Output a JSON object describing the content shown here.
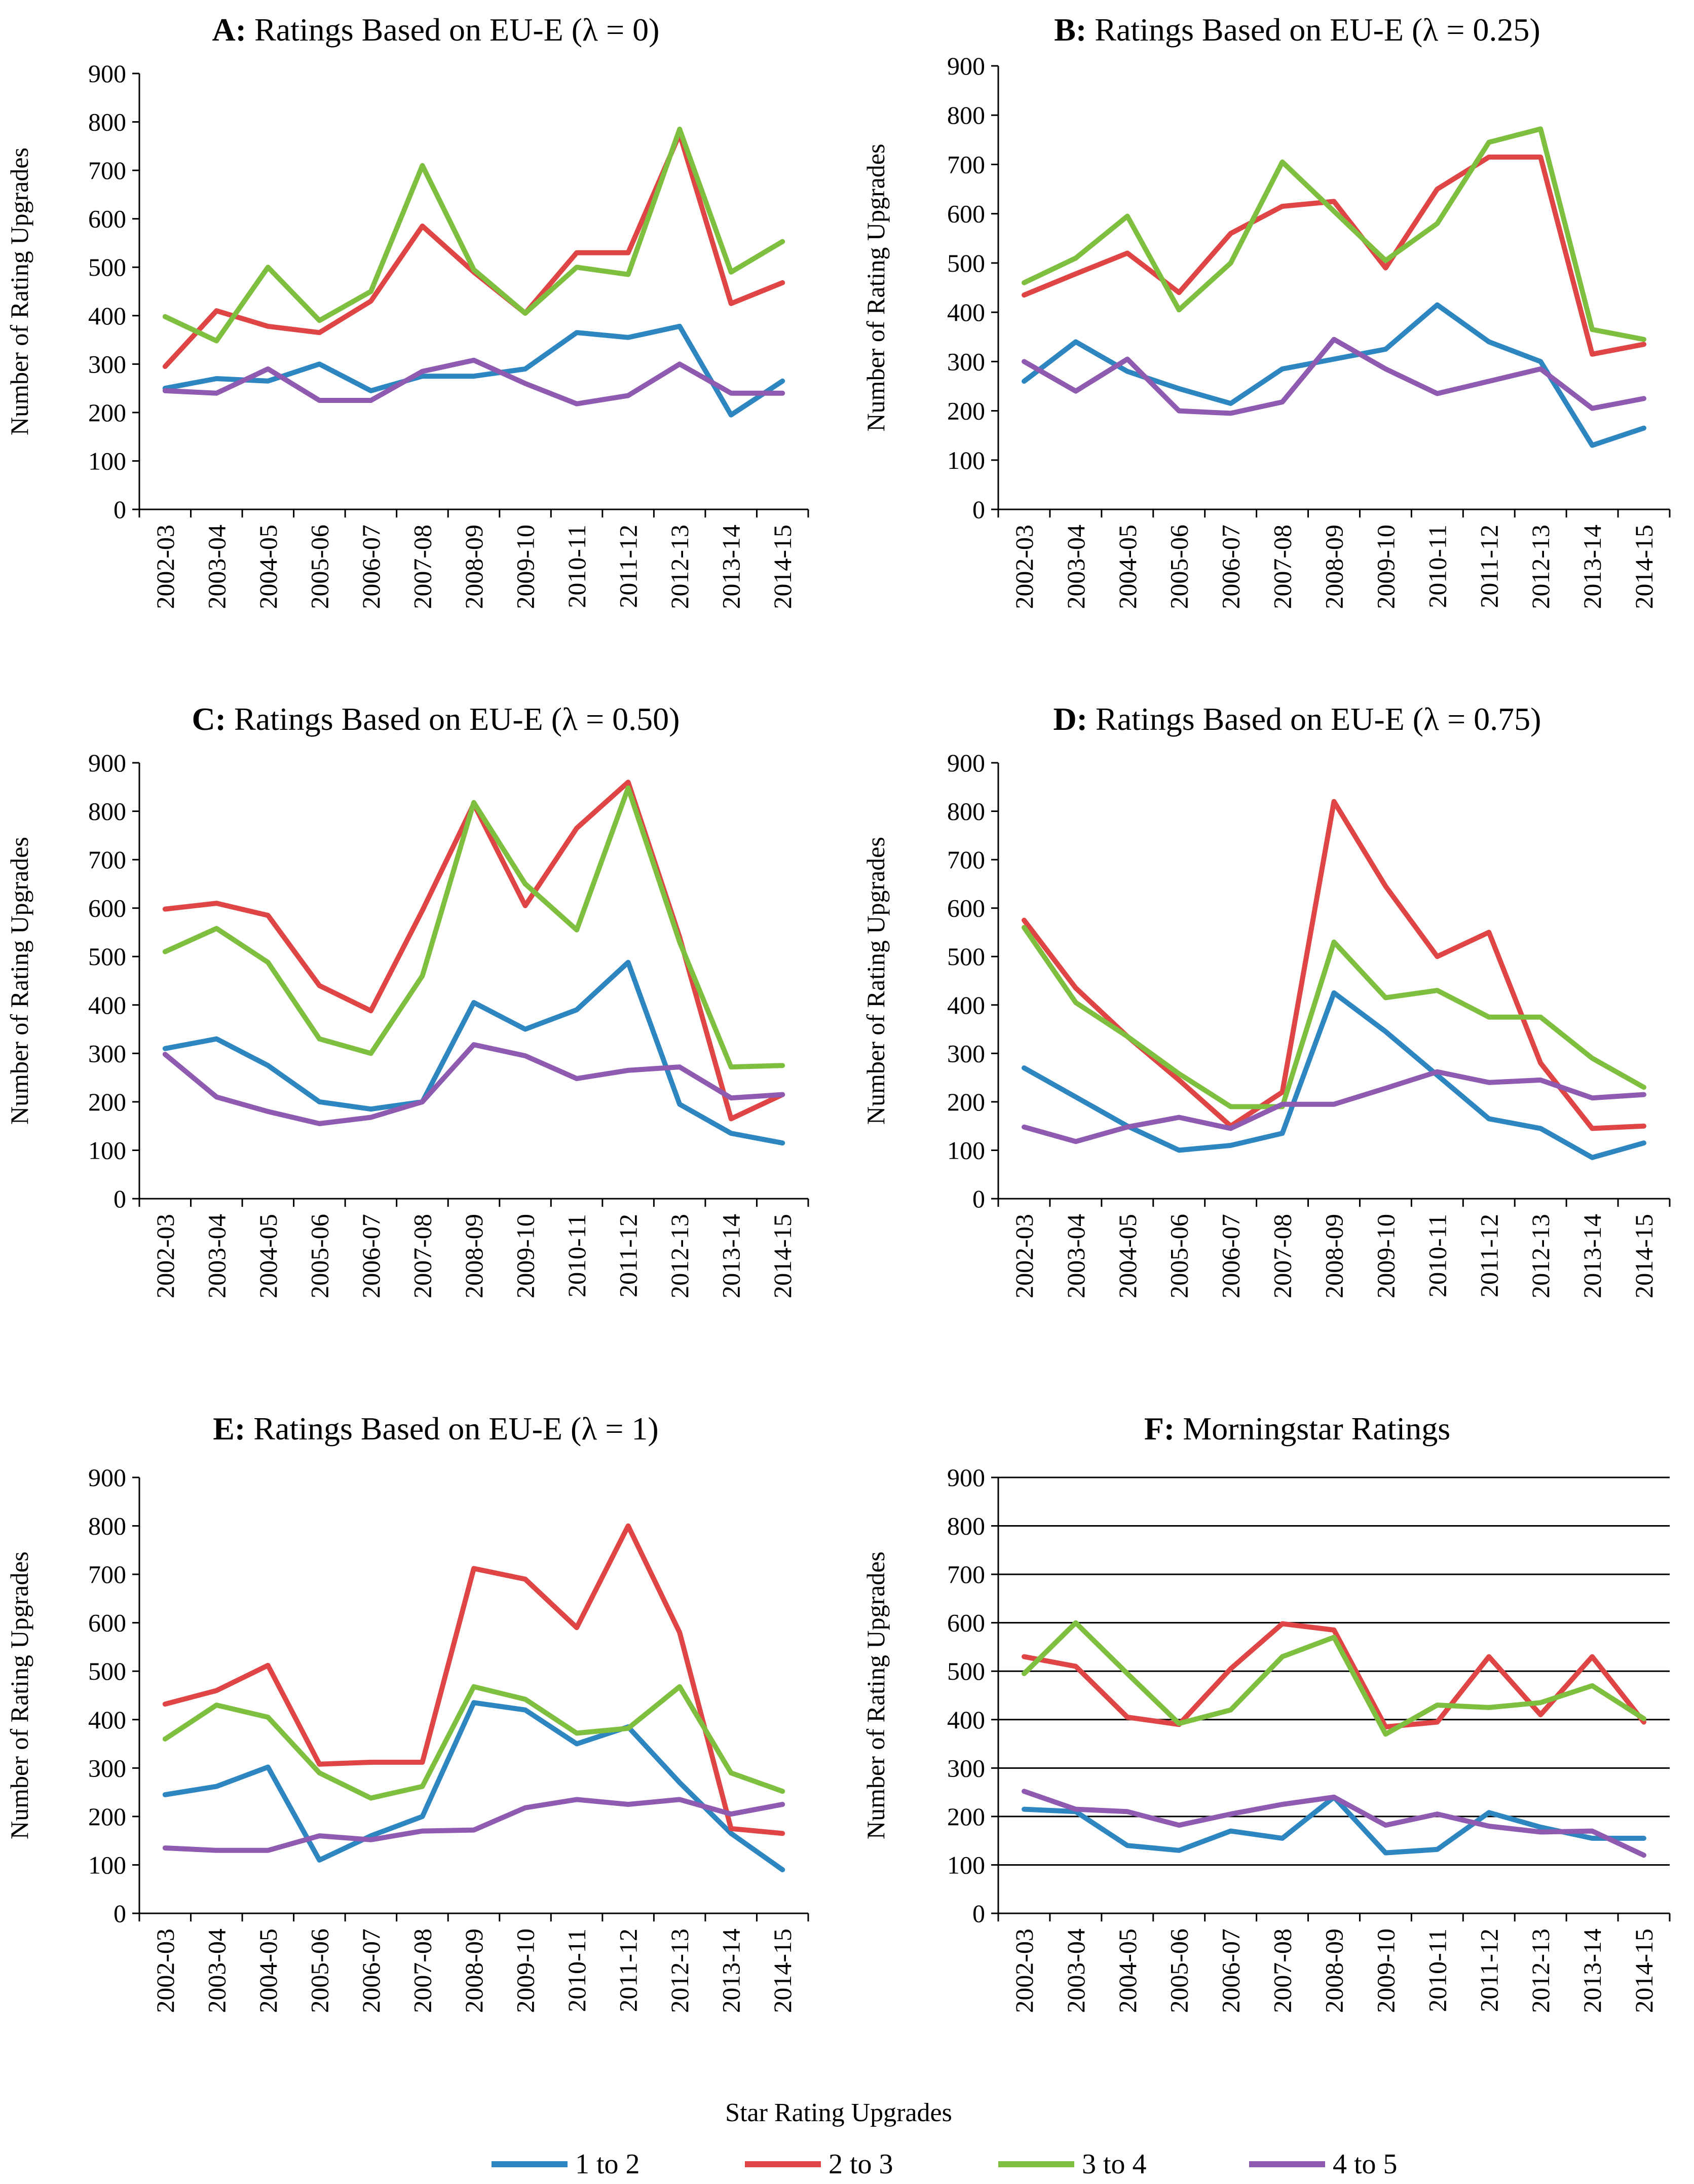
{
  "figure": {
    "legend": {
      "title": "Star Rating Upgrades",
      "items": [
        {
          "label": "1 to 2",
          "color": "#2e86c1"
        },
        {
          "label": "2 to 3",
          "color": "#e04545"
        },
        {
          "label": "3 to 4",
          "color": "#7fbf3f"
        },
        {
          "label": "4 to 5",
          "color": "#8e5bb0"
        }
      ]
    }
  },
  "chart_data": [
    {
      "id": "A",
      "type": "line",
      "title_prefix": "A:",
      "title_text": "Ratings Based on EU-E (λ = 0)",
      "xlabel": "",
      "ylabel": "Number of Rating Upgrades",
      "ylim": [
        0,
        900
      ],
      "yticks": [
        0,
        100,
        200,
        300,
        400,
        500,
        600,
        700,
        800,
        900
      ],
      "gridlines": false,
      "categories": [
        "2002-03",
        "2003-04",
        "2004-05",
        "2005-06",
        "2006-07",
        "2007-08",
        "2008-09",
        "2009-10",
        "2010-11",
        "2011-12",
        "2012-13",
        "2013-14",
        "2014-15"
      ],
      "series": [
        {
          "name": "1 to 2",
          "values": [
            250,
            270,
            265,
            300,
            245,
            275,
            275,
            290,
            365,
            355,
            378,
            195,
            265
          ]
        },
        {
          "name": "2 to 3",
          "values": [
            295,
            410,
            378,
            365,
            430,
            585,
            490,
            405,
            530,
            530,
            775,
            425,
            468
          ]
        },
        {
          "name": "3 to 4",
          "values": [
            398,
            348,
            500,
            390,
            450,
            710,
            495,
            405,
            500,
            485,
            785,
            490,
            553
          ]
        },
        {
          "name": "4 to 5",
          "values": [
            245,
            240,
            290,
            225,
            225,
            285,
            308,
            260,
            218,
            235,
            300,
            240,
            240
          ]
        }
      ]
    },
    {
      "id": "B",
      "type": "line",
      "title_prefix": "B:",
      "title_text": "Ratings Based on EU-E (λ = 0.25)",
      "xlabel": "",
      "ylabel": "Number of Rating Upgrades",
      "ylim": [
        0,
        900
      ],
      "yticks": [
        0,
        100,
        200,
        300,
        400,
        500,
        600,
        700,
        800,
        900
      ],
      "gridlines": false,
      "categories": [
        "2002-03",
        "2003-04",
        "2004-05",
        "2005-06",
        "2006-07",
        "2007-08",
        "2008-09",
        "2009-10",
        "2010-11",
        "2011-12",
        "2012-13",
        "2013-14",
        "2014-15"
      ],
      "series": [
        {
          "name": "1 to 2",
          "values": [
            260,
            340,
            280,
            245,
            215,
            285,
            305,
            325,
            415,
            340,
            300,
            130,
            165
          ]
        },
        {
          "name": "2 to 3",
          "values": [
            435,
            478,
            520,
            440,
            560,
            615,
            625,
            490,
            650,
            715,
            715,
            315,
            335
          ]
        },
        {
          "name": "3 to 4",
          "values": [
            460,
            510,
            595,
            405,
            500,
            705,
            605,
            505,
            580,
            745,
            772,
            365,
            345
          ]
        },
        {
          "name": "4 to 5",
          "values": [
            300,
            240,
            305,
            200,
            195,
            218,
            345,
            285,
            235,
            260,
            285,
            205,
            225
          ]
        }
      ]
    },
    {
      "id": "C",
      "type": "line",
      "title_prefix": "C:",
      "title_text": "Ratings Based on EU-E (λ = 0.50)",
      "xlabel": "",
      "ylabel": "Number of Rating Upgrades",
      "ylim": [
        0,
        900
      ],
      "yticks": [
        0,
        100,
        200,
        300,
        400,
        500,
        600,
        700,
        800,
        900
      ],
      "gridlines": false,
      "categories": [
        "2002-03",
        "2003-04",
        "2004-05",
        "2005-06",
        "2006-07",
        "2007-08",
        "2008-09",
        "2009-10",
        "2010-11",
        "2011-12",
        "2012-13",
        "2013-14",
        "2014-15"
      ],
      "series": [
        {
          "name": "1 to 2",
          "values": [
            310,
            330,
            275,
            200,
            185,
            200,
            405,
            350,
            390,
            488,
            195,
            135,
            115
          ]
        },
        {
          "name": "2 to 3",
          "values": [
            598,
            610,
            585,
            440,
            388,
            595,
            815,
            605,
            765,
            860,
            540,
            165,
            215
          ]
        },
        {
          "name": "3 to 4",
          "values": [
            510,
            558,
            488,
            330,
            300,
            460,
            818,
            650,
            555,
            848,
            530,
            272,
            275
          ]
        },
        {
          "name": "4 to 5",
          "values": [
            298,
            210,
            180,
            155,
            168,
            200,
            318,
            295,
            248,
            265,
            272,
            208,
            215
          ]
        }
      ]
    },
    {
      "id": "D",
      "type": "line",
      "title_prefix": "D:",
      "title_text": "Ratings Based on EU-E (λ = 0.75)",
      "xlabel": "",
      "ylabel": "Number of Rating Upgrades",
      "ylim": [
        0,
        900
      ],
      "yticks": [
        0,
        100,
        200,
        300,
        400,
        500,
        600,
        700,
        800,
        900
      ],
      "gridlines": false,
      "categories": [
        "2002-03",
        "2003-04",
        "2004-05",
        "2005-06",
        "2006-07",
        "2007-08",
        "2008-09",
        "2009-10",
        "2010-11",
        "2011-12",
        "2012-13",
        "2013-14",
        "2014-15"
      ],
      "series": [
        {
          "name": "1 to 2",
          "values": [
            270,
            210,
            150,
            100,
            110,
            135,
            425,
            345,
            255,
            165,
            145,
            85,
            115
          ]
        },
        {
          "name": "2 to 3",
          "values": [
            575,
            435,
            335,
            245,
            150,
            220,
            820,
            645,
            500,
            550,
            280,
            145,
            150
          ]
        },
        {
          "name": "3 to 4",
          "values": [
            560,
            405,
            335,
            258,
            190,
            190,
            530,
            415,
            430,
            375,
            375,
            290,
            230
          ]
        },
        {
          "name": "4 to 5",
          "values": [
            148,
            118,
            148,
            168,
            145,
            195,
            195,
            228,
            262,
            240,
            245,
            208,
            215
          ]
        }
      ]
    },
    {
      "id": "E",
      "type": "line",
      "title_prefix": "E:",
      "title_text": "Ratings Based on EU-E (λ = 1)",
      "xlabel": "",
      "ylabel": "Number of Rating Upgrades",
      "ylim": [
        0,
        900
      ],
      "yticks": [
        0,
        100,
        200,
        300,
        400,
        500,
        600,
        700,
        800,
        900
      ],
      "gridlines": false,
      "categories": [
        "2002-03",
        "2003-04",
        "2004-05",
        "2005-06",
        "2006-07",
        "2007-08",
        "2008-09",
        "2009-10",
        "2010-11",
        "2011-12",
        "2012-13",
        "2013-14",
        "2014-15"
      ],
      "series": [
        {
          "name": "1 to 2",
          "values": [
            245,
            262,
            302,
            110,
            160,
            200,
            435,
            420,
            350,
            385,
            270,
            165,
            90
          ]
        },
        {
          "name": "2 to 3",
          "values": [
            432,
            460,
            512,
            308,
            312,
            312,
            712,
            690,
            590,
            800,
            580,
            175,
            165
          ]
        },
        {
          "name": "3 to 4",
          "values": [
            360,
            430,
            405,
            290,
            238,
            262,
            468,
            442,
            372,
            382,
            468,
            290,
            252
          ]
        },
        {
          "name": "4 to 5",
          "values": [
            135,
            130,
            130,
            160,
            152,
            170,
            172,
            218,
            235,
            225,
            235,
            205,
            225
          ]
        }
      ]
    },
    {
      "id": "F",
      "type": "line",
      "title_prefix": "F:",
      "title_text": "Morningstar Ratings",
      "xlabel": "",
      "ylabel": "Number of Rating Upgrades",
      "ylim": [
        0,
        900
      ],
      "yticks": [
        0,
        100,
        200,
        300,
        400,
        500,
        600,
        700,
        800,
        900
      ],
      "gridlines": true,
      "categories": [
        "2002-03",
        "2003-04",
        "2004-05",
        "2005-06",
        "2006-07",
        "2007-08",
        "2008-09",
        "2009-10",
        "2010-11",
        "2011-12",
        "2012-13",
        "2013-14",
        "2014-15"
      ],
      "series": [
        {
          "name": "1 to 2",
          "values": [
            215,
            210,
            140,
            130,
            170,
            155,
            240,
            125,
            132,
            208,
            178,
            155,
            155
          ]
        },
        {
          "name": "2 to 3",
          "values": [
            530,
            510,
            405,
            390,
            505,
            598,
            585,
            385,
            395,
            530,
            410,
            530,
            395
          ]
        },
        {
          "name": "3 to 4",
          "values": [
            495,
            600,
            495,
            392,
            420,
            530,
            570,
            370,
            430,
            425,
            435,
            470,
            402
          ]
        },
        {
          "name": "4 to 5",
          "values": [
            252,
            215,
            210,
            182,
            205,
            225,
            240,
            182,
            205,
            180,
            168,
            170,
            120
          ]
        }
      ]
    }
  ]
}
